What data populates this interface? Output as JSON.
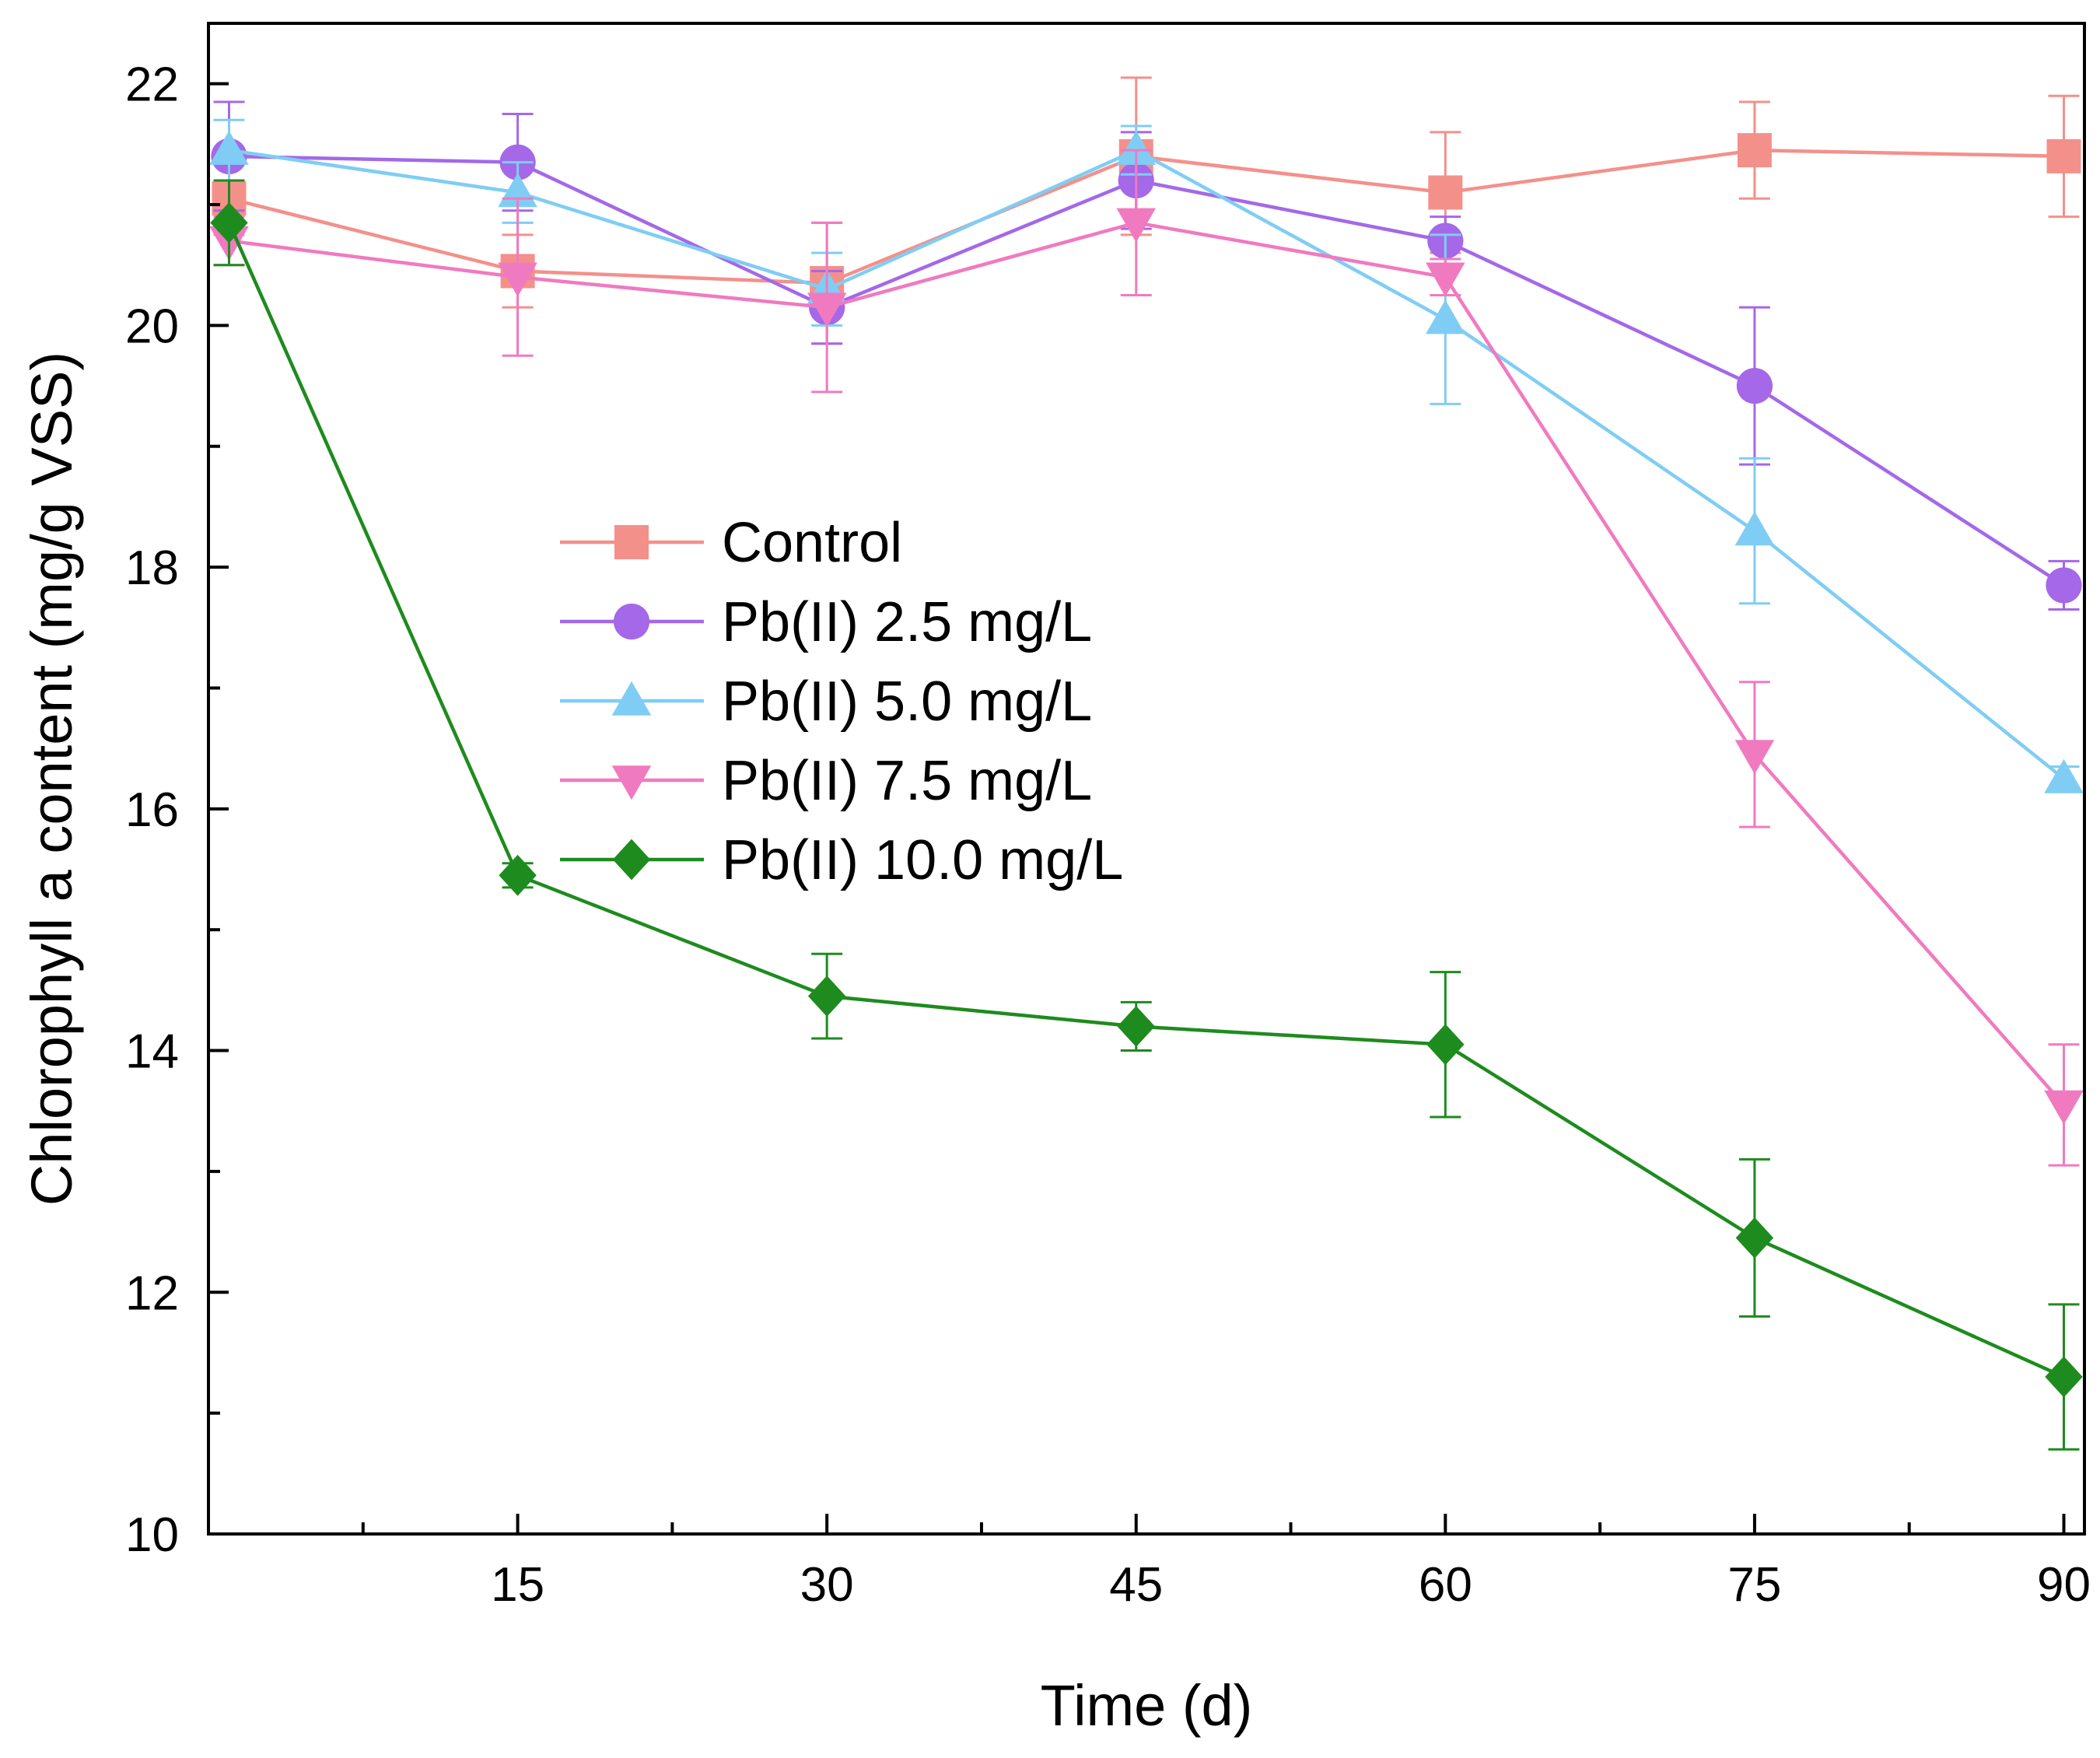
{
  "chart_data": {
    "type": "line",
    "title": "",
    "xlabel": "Time (d)",
    "ylabel": "Chlorophyll a content (mg/g VSS)",
    "xlim": [
      0,
      91
    ],
    "ylim": [
      10,
      22.5
    ],
    "x_ticks": [
      15,
      30,
      45,
      60,
      75,
      90
    ],
    "y_ticks": [
      10,
      12,
      14,
      16,
      18,
      20,
      22
    ],
    "grid": false,
    "legend_position": "center-left",
    "x": [
      1,
      15,
      30,
      45,
      60,
      75,
      90
    ],
    "series": [
      {
        "name": "Control",
        "marker": "square",
        "color": "#F4908A",
        "values": [
          21.05,
          20.45,
          20.35,
          21.4,
          21.1,
          21.45,
          21.4
        ],
        "errors": [
          0.3,
          0.3,
          0.5,
          0.65,
          0.5,
          0.4,
          0.5
        ]
      },
      {
        "name": "Pb(II) 2.5 mg/L",
        "marker": "circle",
        "color": "#A468E8",
        "values": [
          21.4,
          21.35,
          20.15,
          21.2,
          20.7,
          19.5,
          17.85
        ],
        "errors": [
          0.45,
          0.4,
          0.3,
          0.4,
          0.2,
          0.65,
          0.2
        ]
      },
      {
        "name": "Pb(II) 5.0 mg/L",
        "marker": "triangle-up",
        "color": "#7FCDF4",
        "values": [
          21.45,
          21.1,
          20.3,
          21.45,
          20.05,
          18.3,
          16.25
        ],
        "errors": [
          0.25,
          0.25,
          0.3,
          0.2,
          0.7,
          0.6,
          0.1
        ]
      },
      {
        "name": "Pb(II) 7.5 mg/L",
        "marker": "triangle-down",
        "color": "#F07AC0",
        "values": [
          20.7,
          20.4,
          20.15,
          20.85,
          20.4,
          16.45,
          13.55
        ],
        "errors": [
          0.2,
          0.65,
          0.7,
          0.6,
          0.15,
          0.6,
          0.5
        ]
      },
      {
        "name": "Pb(II) 10.0 mg/L",
        "marker": "diamond",
        "color": "#1E8B1E",
        "values": [
          20.85,
          15.45,
          14.45,
          14.2,
          14.05,
          12.45,
          11.3
        ],
        "errors": [
          0.35,
          0.1,
          0.35,
          0.2,
          0.6,
          0.65,
          0.6
        ]
      }
    ]
  }
}
